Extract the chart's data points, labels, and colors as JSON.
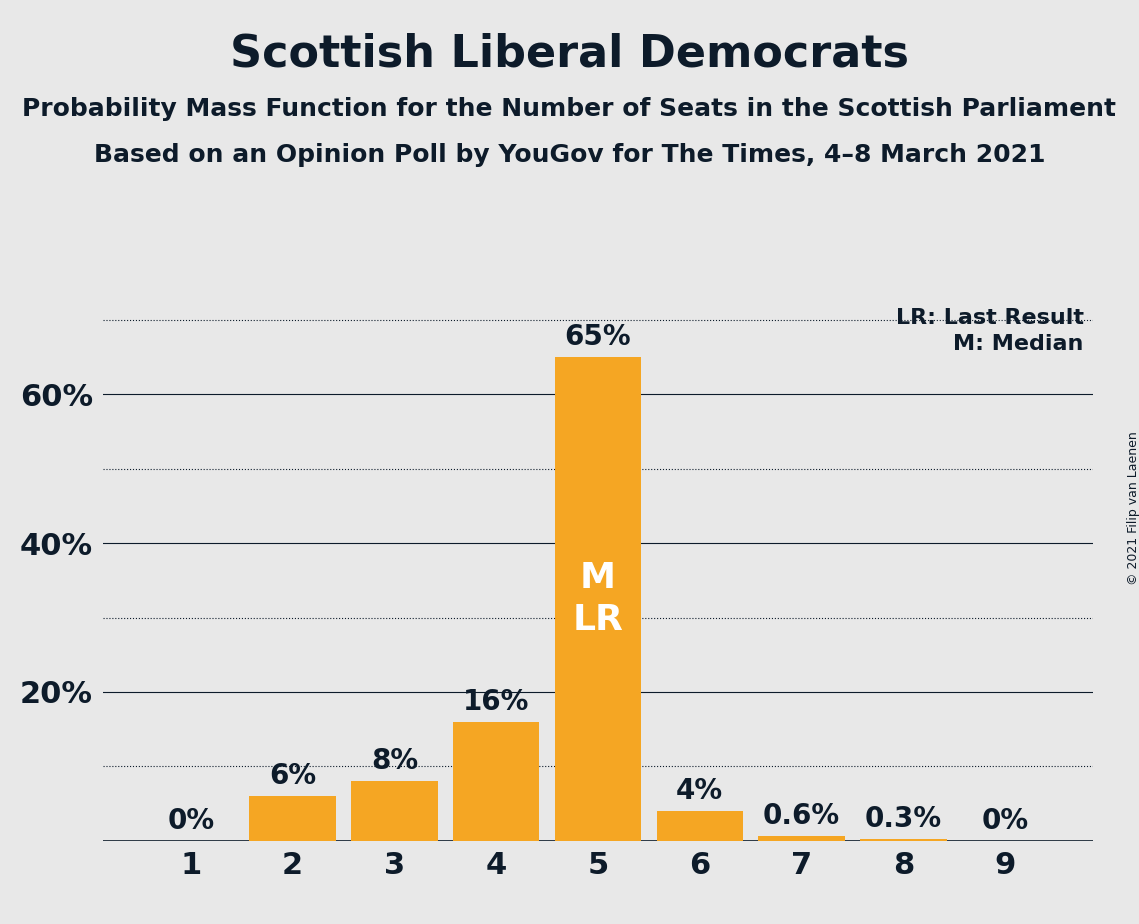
{
  "title": "Scottish Liberal Democrats",
  "subtitle1": "Probability Mass Function for the Number of Seats in the Scottish Parliament",
  "subtitle2": "Based on an Opinion Poll by YouGov for The Times, 4–8 March 2021",
  "categories": [
    1,
    2,
    3,
    4,
    5,
    6,
    7,
    8,
    9
  ],
  "values": [
    0.0,
    6.0,
    8.0,
    16.0,
    65.0,
    4.0,
    0.6,
    0.3,
    0.0
  ],
  "labels": [
    "0%",
    "6%",
    "8%",
    "16%",
    "65%",
    "4%",
    "0.6%",
    "0.3%",
    "0%"
  ],
  "bar_color": "#F5A623",
  "background_color": "#E8E8E8",
  "text_color": "#0D1B2A",
  "legend_line1": "LR: Last Result",
  "legend_line2": "M: Median",
  "bar_label_inside": "M\nLR",
  "bar_label_inside_bar": 5,
  "ylim": [
    0,
    72
  ],
  "solid_gridlines": [
    0,
    20,
    40,
    60
  ],
  "dotted_gridlines": [
    10,
    30,
    50,
    70
  ],
  "ytick_positions": [
    20,
    40,
    60
  ],
  "ytick_labels": [
    "20%",
    "40%",
    "60%"
  ],
  "copyright_text": "© 2021 Filip van Laenen",
  "title_fontsize": 32,
  "subtitle_fontsize": 18,
  "axis_tick_fontsize": 22,
  "bar_label_fontsize": 20,
  "inside_label_fontsize": 26,
  "legend_fontsize": 16,
  "copyright_fontsize": 9
}
